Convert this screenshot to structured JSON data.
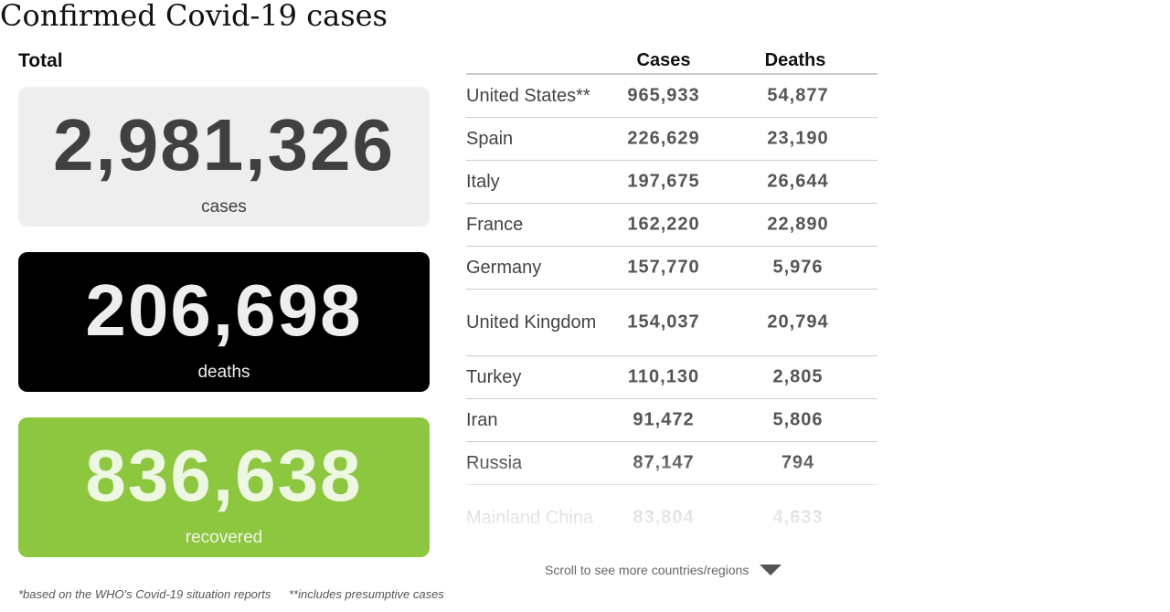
{
  "title": "Confirmed Covid-19 cases",
  "total": {
    "label": "Total",
    "cases": {
      "value": "2,981,326",
      "caption": "cases"
    },
    "deaths": {
      "value": "206,698",
      "caption": "deaths"
    },
    "recovered": {
      "value": "836,638",
      "caption": "recovered"
    }
  },
  "table": {
    "headers": {
      "cases": "Cases",
      "deaths": "Deaths"
    },
    "rows": [
      {
        "country": "United States**",
        "cases": "965,933",
        "deaths": "54,877"
      },
      {
        "country": "Spain",
        "cases": "226,629",
        "deaths": "23,190"
      },
      {
        "country": "Italy",
        "cases": "197,675",
        "deaths": "26,644"
      },
      {
        "country": "France",
        "cases": "162,220",
        "deaths": "22,890"
      },
      {
        "country": "Germany",
        "cases": "157,770",
        "deaths": "5,976"
      },
      {
        "country": "United Kingdom",
        "cases": "154,037",
        "deaths": "20,794"
      },
      {
        "country": "Turkey",
        "cases": "110,130",
        "deaths": "2,805"
      },
      {
        "country": "Iran",
        "cases": "91,472",
        "deaths": "5,806"
      },
      {
        "country": "Russia",
        "cases": "87,147",
        "deaths": "794"
      },
      {
        "country": "Mainland China",
        "cases": "83,804",
        "deaths": "4,633"
      }
    ]
  },
  "scroll_hint": "Scroll to see more countries/regions",
  "footnotes": {
    "who": "*based on the WHO's Covid-19 situation reports",
    "presumptive": "**includes presumptive cases"
  },
  "colors": {
    "cases_card": "#eeeeee",
    "deaths_card": "#000000",
    "recovered_card": "#8dc63f"
  },
  "icons": {
    "scroll": "triangle-down-icon"
  }
}
